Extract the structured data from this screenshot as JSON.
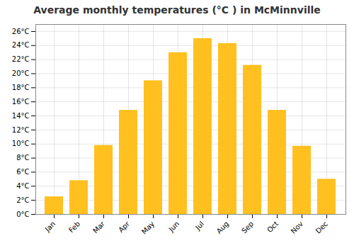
{
  "chart_data": {
    "type": "bar",
    "title": "Average monthly temperatures (°C ) in McMinnville",
    "categories": [
      "Jan",
      "Feb",
      "Mar",
      "Apr",
      "May",
      "Jun",
      "Jul",
      "Aug",
      "Sep",
      "Oct",
      "Nov",
      "Dec"
    ],
    "values": [
      2.5,
      4.8,
      9.8,
      14.8,
      19.0,
      23.0,
      25.0,
      24.3,
      21.2,
      14.8,
      9.7,
      5.0
    ],
    "color": "#FFC020",
    "ylim": [
      0,
      27
    ],
    "yticks": [
      {
        "value": 0,
        "label": "0°C"
      },
      {
        "value": 2,
        "label": "2°C"
      },
      {
        "value": 4,
        "label": "4°C"
      },
      {
        "value": 6,
        "label": "6°C"
      },
      {
        "value": 8,
        "label": "8°C"
      },
      {
        "value": 10,
        "label": "10°C"
      },
      {
        "value": 12,
        "label": "12°C"
      },
      {
        "value": 14,
        "label": "14°C"
      },
      {
        "value": 16,
        "label": "16°C"
      },
      {
        "value": 18,
        "label": "18°C"
      },
      {
        "value": 20,
        "label": "20°C"
      },
      {
        "value": 22,
        "label": "22°C"
      },
      {
        "value": 24,
        "label": "24°C"
      },
      {
        "value": 26,
        "label": "26°C"
      }
    ],
    "grid": true
  }
}
